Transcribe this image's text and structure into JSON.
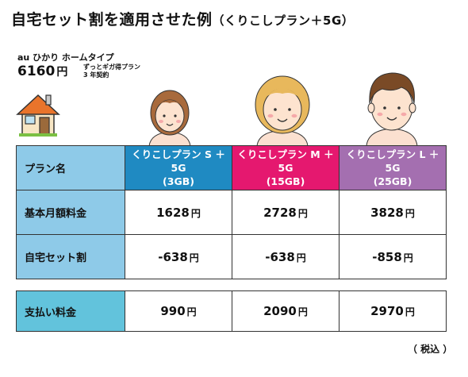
{
  "title": {
    "main": "自宅セット割を適用させた例",
    "sub": "（くりこしプラン＋5G）"
  },
  "plan_info": {
    "isp": "au ひかり ホームタイプ",
    "price": "6160",
    "unit": "円",
    "note_line1": "ずっとギガ得プラン",
    "note_line2": "3 年契約"
  },
  "icons": {
    "house": "house-icon",
    "person_s": "woman-short-hair-icon",
    "person_m": "woman-bob-hair-icon",
    "person_l": "man-icon"
  },
  "colors": {
    "plan_s": "#1f8ac2",
    "plan_m": "#e5186f",
    "plan_l": "#a46fb0",
    "label_bg": "#8ecae8",
    "total_label_bg": "#62c3dc"
  },
  "table": {
    "header_label": "プラン名",
    "plans": [
      {
        "line1": "くりこしプラン S ＋5G",
        "line2": "(3GB)"
      },
      {
        "line1": "くりこしプラン M ＋5G",
        "line2": "(15GB)"
      },
      {
        "line1": "くりこしプラン L ＋5G",
        "line2": "(25GB)"
      }
    ],
    "rows": [
      {
        "label": "基本月額料金",
        "values": [
          "1628",
          "2728",
          "3828"
        ]
      },
      {
        "label": "自宅セット割",
        "values": [
          "-638",
          "-638",
          "-858"
        ]
      }
    ],
    "unit": "円"
  },
  "total": {
    "label": "支払い料金",
    "values": [
      "990",
      "2090",
      "2970"
    ]
  },
  "tax_note": "（ 税込 ）"
}
